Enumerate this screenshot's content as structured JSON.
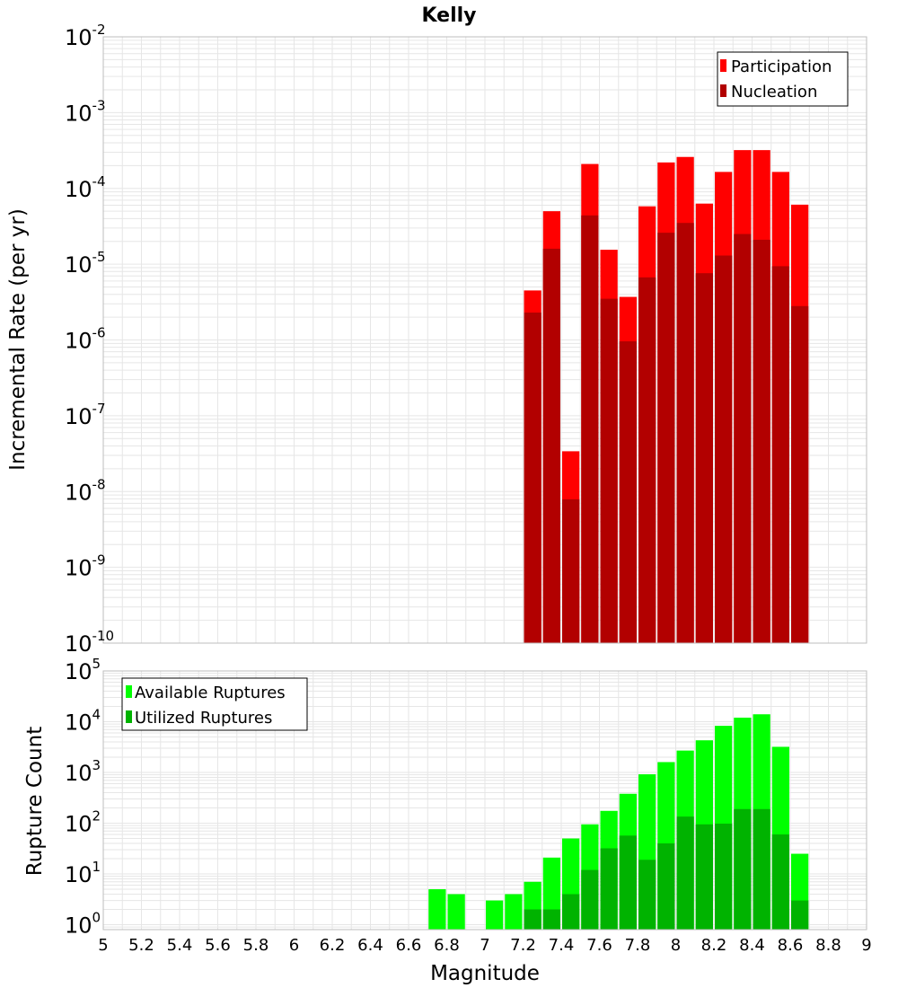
{
  "title": "Kelly",
  "colors": {
    "participation": "#ff0000",
    "nucleation": "#b20000",
    "available": "#00ff00",
    "utilized": "#00b300",
    "grid": "#e6e6e6",
    "frame": "#bdbdbd",
    "background": "#ffffff"
  },
  "chart_data": [
    {
      "type": "bar",
      "scale": "log",
      "title": "Kelly",
      "xlabel": "Magnitude",
      "ylabel": "Incremental Rate (per yr)",
      "xlim": [
        5,
        9
      ],
      "ylim": [
        1e-10,
        0.01
      ],
      "y_tick_exponents": [
        "-10",
        "-9",
        "-8",
        "-7",
        "-6",
        "-5",
        "-4",
        "-3",
        "-2"
      ],
      "y_tick_base": "10",
      "bin_width": 0.1,
      "legend": {
        "position": "top-right",
        "entries": [
          "Participation",
          "Nucleation"
        ]
      },
      "x": [
        7.25,
        7.35,
        7.45,
        7.55,
        7.65,
        7.75,
        7.85,
        7.95,
        8.05,
        8.15,
        8.25,
        8.35,
        8.45,
        8.55,
        8.65
      ],
      "series": [
        {
          "name": "Participation",
          "values": [
            4.5e-06,
            5e-05,
            3.4e-08,
            0.00021,
            1.55e-05,
            3.7e-06,
            5.8e-05,
            0.00022,
            0.00026,
            6.3e-05,
            0.000165,
            0.00032,
            0.00032,
            0.000165,
            6.1e-05
          ]
        },
        {
          "name": "Nucleation",
          "values": [
            2.3e-06,
            1.6e-05,
            7.9e-09,
            4.4e-05,
            3.5e-06,
            9.6e-07,
            6.7e-06,
            2.6e-05,
            3.5e-05,
            7.6e-06,
            1.3e-05,
            2.5e-05,
            2.1e-05,
            9.4e-06,
            2.8e-06
          ]
        }
      ]
    },
    {
      "type": "bar",
      "scale": "log",
      "xlabel": "Magnitude",
      "ylabel": "Rupture Count",
      "xlim": [
        5,
        9
      ],
      "ylim": [
        0.8,
        100000.0
      ],
      "y_tick_exponents": [
        "0",
        "1",
        "2",
        "3",
        "4",
        "5"
      ],
      "y_tick_base": "10",
      "x_ticks": [
        "5",
        "5.2",
        "5.4",
        "5.6",
        "5.8",
        "6",
        "6.2",
        "6.4",
        "6.6",
        "6.8",
        "7",
        "7.2",
        "7.4",
        "7.6",
        "7.8",
        "8",
        "8.2",
        "8.4",
        "8.6",
        "8.8",
        "9"
      ],
      "bin_width": 0.1,
      "legend": {
        "position": "top-left",
        "entries": [
          "Available Ruptures",
          "Utilized Ruptures"
        ]
      },
      "x": [
        6.75,
        6.85,
        7.05,
        7.15,
        7.25,
        7.35,
        7.45,
        7.55,
        7.65,
        7.75,
        7.85,
        7.95,
        8.05,
        8.15,
        8.25,
        8.35,
        8.45,
        8.55,
        8.65
      ],
      "series": [
        {
          "name": "Available Ruptures",
          "values": [
            5,
            4,
            3,
            4,
            7,
            21,
            50,
            95,
            175,
            380,
            920,
            1600,
            2700,
            4300,
            8300,
            12000,
            14000,
            3200,
            25
          ]
        },
        {
          "name": "Utilized Ruptures",
          "values": [
            0,
            0,
            0,
            0,
            2,
            2,
            4,
            12,
            32,
            57,
            19,
            40,
            135,
            95,
            98,
            190,
            190,
            60,
            3
          ]
        }
      ]
    }
  ]
}
